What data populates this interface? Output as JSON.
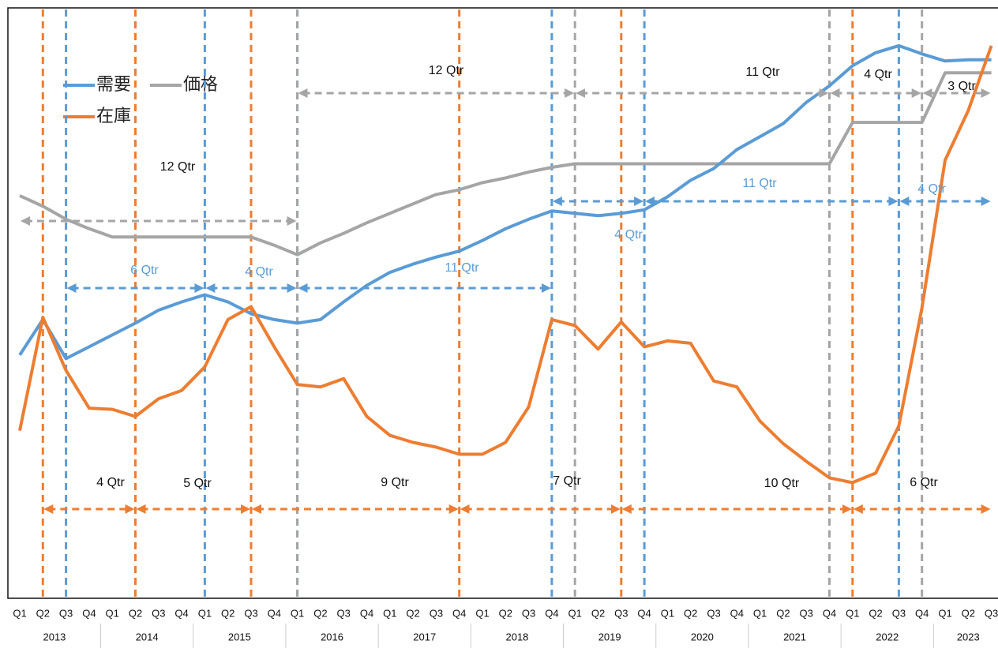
{
  "chart_data": {
    "type": "line",
    "categories": [
      "Q1",
      "Q2",
      "Q3",
      "Q4",
      "Q1",
      "Q2",
      "Q3",
      "Q4",
      "Q1",
      "Q2",
      "Q3",
      "Q4",
      "Q1",
      "Q2",
      "Q3",
      "Q4",
      "Q1",
      "Q2",
      "Q3",
      "Q4",
      "Q1",
      "Q2",
      "Q3",
      "Q4",
      "Q1",
      "Q2",
      "Q3",
      "Q4",
      "Q1",
      "Q2",
      "Q3",
      "Q4",
      "Q1",
      "Q2",
      "Q3",
      "Q4",
      "Q1",
      "Q2",
      "Q3",
      "Q4",
      "Q1",
      "Q2",
      "Q3"
    ],
    "years": [
      "2013",
      "2014",
      "2015",
      "2016",
      "2017",
      "2018",
      "2019",
      "2020",
      "2021",
      "2022",
      "2023"
    ],
    "ylim": [
      0,
      5
    ],
    "series": [
      {
        "name": "需要",
        "color": "#5b9bd5",
        "values": [
          2.06,
          2.36,
          2.03,
          2.13,
          2.23,
          2.33,
          2.44,
          2.51,
          2.57,
          2.51,
          2.41,
          2.36,
          2.33,
          2.36,
          2.51,
          2.65,
          2.76,
          2.83,
          2.89,
          2.94,
          3.03,
          3.13,
          3.21,
          3.28,
          3.26,
          3.24,
          3.26,
          3.29,
          3.4,
          3.54,
          3.64,
          3.8,
          3.91,
          4.02,
          4.2,
          4.34,
          4.51,
          4.62,
          4.68,
          4.61,
          4.55,
          4.56,
          4.56
        ]
      },
      {
        "name": "価格",
        "color": "#a5a5a5",
        "values": [
          3.41,
          3.32,
          3.21,
          3.13,
          3.06,
          3.06,
          3.06,
          3.06,
          3.06,
          3.06,
          3.06,
          2.99,
          2.91,
          3.01,
          3.09,
          3.18,
          3.26,
          3.34,
          3.42,
          3.46,
          3.52,
          3.56,
          3.61,
          3.65,
          3.68,
          3.68,
          3.68,
          3.68,
          3.68,
          3.68,
          3.68,
          3.68,
          3.68,
          3.68,
          3.68,
          3.68,
          4.03,
          4.03,
          4.03,
          4.03,
          4.45,
          4.45,
          4.45
        ]
      },
      {
        "name": "在庫",
        "color": "#ed7d31",
        "values": [
          1.42,
          2.38,
          1.93,
          1.61,
          1.6,
          1.54,
          1.69,
          1.76,
          1.96,
          2.36,
          2.47,
          2.13,
          1.81,
          1.79,
          1.86,
          1.54,
          1.38,
          1.32,
          1.28,
          1.22,
          1.22,
          1.32,
          1.62,
          2.36,
          2.31,
          2.11,
          2.34,
          2.13,
          2.18,
          2.16,
          1.84,
          1.79,
          1.5,
          1.31,
          1.16,
          1.02,
          0.98,
          1.06,
          1.46,
          2.46,
          3.71,
          4.13,
          4.68
        ]
      }
    ],
    "markers": [
      {
        "index": 1,
        "color": "#ed7d31"
      },
      {
        "index": 5,
        "color": "#ed7d31"
      },
      {
        "index": 10,
        "color": "#ed7d31"
      },
      {
        "index": 19,
        "color": "#ed7d31"
      },
      {
        "index": 26,
        "color": "#ed7d31"
      },
      {
        "index": 36,
        "color": "#ed7d31"
      },
      {
        "index": 2,
        "color": "#5b9bd5"
      },
      {
        "index": 8,
        "color": "#5b9bd5"
      },
      {
        "index": 12,
        "color": "#5b9bd5"
      },
      {
        "index": 23,
        "color": "#5b9bd5"
      },
      {
        "index": 27,
        "color": "#5b9bd5"
      },
      {
        "index": 38,
        "color": "#5b9bd5"
      },
      {
        "index": 12,
        "color": "#a5a5a5"
      },
      {
        "index": 24,
        "color": "#a5a5a5"
      },
      {
        "index": 35,
        "color": "#a5a5a5"
      },
      {
        "index": 39,
        "color": "#a5a5a5"
      }
    ],
    "annotations": [
      {
        "label": "12 Qtr",
        "from": 0,
        "to": 12,
        "color": "#a5a5a5",
        "text_color": "#111111"
      },
      {
        "label": "12 Qtr",
        "from": 12,
        "to": 24,
        "color": "#a5a5a5",
        "text_color": "#111111"
      },
      {
        "label": "11 Qtr",
        "from": 24,
        "to": 35,
        "color": "#a5a5a5",
        "text_color": "#111111"
      },
      {
        "label": "4 Qtr",
        "from": 35,
        "to": 39,
        "color": "#a5a5a5",
        "text_color": "#111111"
      },
      {
        "label": "3 Qtr",
        "from": 39,
        "to": 42,
        "color": "#a5a5a5",
        "text_color": "#111111"
      },
      {
        "label": "6 Qtr",
        "from": 2,
        "to": 8,
        "color": "#5b9bd5",
        "text_color": "#5b9bd5"
      },
      {
        "label": "4 Qtr",
        "from": 8,
        "to": 12,
        "color": "#5b9bd5",
        "text_color": "#5b9bd5"
      },
      {
        "label": "11 Qtr",
        "from": 12,
        "to": 23,
        "color": "#5b9bd5",
        "text_color": "#5b9bd5"
      },
      {
        "label": "4 Qtr",
        "from": 23,
        "to": 27,
        "color": "#5b9bd5",
        "text_color": "#5b9bd5"
      },
      {
        "label": "11 Qtr",
        "from": 27,
        "to": 38,
        "color": "#5b9bd5",
        "text_color": "#5b9bd5"
      },
      {
        "label": "4 Qtr",
        "from": 38,
        "to": 42,
        "color": "#5b9bd5",
        "text_color": "#5b9bd5"
      },
      {
        "label": "4 Qtr",
        "from": 1,
        "to": 5,
        "color": "#ed7d31",
        "text_color": "#111111"
      },
      {
        "label": "5 Qtr",
        "from": 5,
        "to": 10,
        "color": "#ed7d31",
        "text_color": "#111111"
      },
      {
        "label": "9 Qtr",
        "from": 10,
        "to": 19,
        "color": "#ed7d31",
        "text_color": "#111111"
      },
      {
        "label": "7 Qtr",
        "from": 19,
        "to": 26,
        "color": "#ed7d31",
        "text_color": "#111111"
      },
      {
        "label": "10 Qtr",
        "from": 26,
        "to": 36,
        "color": "#ed7d31",
        "text_color": "#111111"
      },
      {
        "label": "6 Qtr",
        "from": 36,
        "to": 42,
        "color": "#ed7d31",
        "text_color": "#111111"
      }
    ]
  }
}
